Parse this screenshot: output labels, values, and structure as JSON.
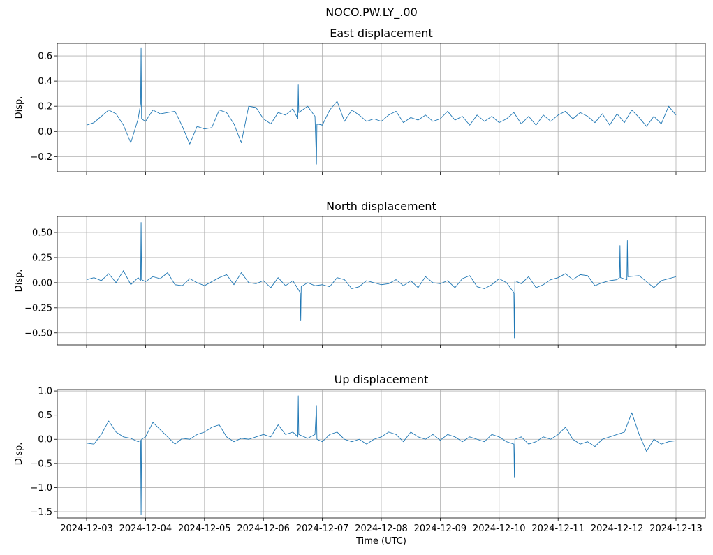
{
  "figure": {
    "suptitle": "NOCO.PW.LY_.00",
    "series_color": "#1f77b4"
  },
  "chart_data": [
    {
      "type": "line",
      "title": "East displacement",
      "xlabel": "",
      "ylabel": "Disp.",
      "xlim": [
        "2024-12-03",
        "2024-12-13"
      ],
      "ylim": [
        -0.32,
        0.7
      ],
      "yticks": [
        -0.2,
        0.0,
        0.2,
        0.4,
        0.6
      ],
      "ytick_labels": [
        "−0.2",
        "0.0",
        "0.2",
        "0.4",
        "0.6"
      ],
      "grid": true,
      "series": [
        {
          "x": [
            "2024-12-03T00:00",
            "2024-12-03T03:00",
            "2024-12-03T06:00",
            "2024-12-03T09:00",
            "2024-12-03T12:00",
            "2024-12-03T15:00",
            "2024-12-03T18:00",
            "2024-12-03T21:00",
            "2024-12-03T22:00",
            "2024-12-03T22:12",
            "2024-12-03T22:24",
            "2024-12-04T00:00",
            "2024-12-04T03:00",
            "2024-12-04T06:00",
            "2024-12-04T09:00",
            "2024-12-04T12:00",
            "2024-12-04T15:00",
            "2024-12-04T18:00",
            "2024-12-04T21:00",
            "2024-12-05T00:00",
            "2024-12-05T03:00",
            "2024-12-05T06:00",
            "2024-12-05T09:00",
            "2024-12-05T12:00",
            "2024-12-05T15:00",
            "2024-12-05T18:00",
            "2024-12-05T21:00",
            "2024-12-06T00:00",
            "2024-12-06T03:00",
            "2024-12-06T06:00",
            "2024-12-06T09:00",
            "2024-12-06T12:00",
            "2024-12-06T14:00",
            "2024-12-06T14:12",
            "2024-12-06T14:24",
            "2024-12-06T18:00",
            "2024-12-06T21:00",
            "2024-12-06T21:36",
            "2024-12-06T21:48",
            "2024-12-07T00:00",
            "2024-12-07T03:00",
            "2024-12-07T06:00",
            "2024-12-07T09:00",
            "2024-12-07T12:00",
            "2024-12-07T15:00",
            "2024-12-07T18:00",
            "2024-12-07T21:00",
            "2024-12-08T00:00",
            "2024-12-08T03:00",
            "2024-12-08T06:00",
            "2024-12-08T09:00",
            "2024-12-08T12:00",
            "2024-12-08T15:00",
            "2024-12-08T18:00",
            "2024-12-08T21:00",
            "2024-12-09T00:00",
            "2024-12-09T03:00",
            "2024-12-09T06:00",
            "2024-12-09T09:00",
            "2024-12-09T12:00",
            "2024-12-09T15:00",
            "2024-12-09T18:00",
            "2024-12-09T21:00",
            "2024-12-10T00:00",
            "2024-12-10T03:00",
            "2024-12-10T06:00",
            "2024-12-10T09:00",
            "2024-12-10T12:00",
            "2024-12-10T15:00",
            "2024-12-10T18:00",
            "2024-12-10T21:00",
            "2024-12-11T00:00",
            "2024-12-11T03:00",
            "2024-12-11T06:00",
            "2024-12-11T09:00",
            "2024-12-11T12:00",
            "2024-12-11T15:00",
            "2024-12-11T18:00",
            "2024-12-11T21:00",
            "2024-12-12T00:00",
            "2024-12-12T03:00",
            "2024-12-12T06:00",
            "2024-12-12T09:00",
            "2024-12-12T12:00",
            "2024-12-12T15:00",
            "2024-12-12T18:00",
            "2024-12-12T21:00",
            "2024-12-13T00:00"
          ],
          "y": [
            0.05,
            0.07,
            0.12,
            0.17,
            0.14,
            0.05,
            -0.09,
            0.1,
            0.22,
            0.66,
            0.1,
            0.08,
            0.17,
            0.14,
            0.15,
            0.16,
            0.04,
            -0.1,
            0.04,
            0.02,
            0.03,
            0.17,
            0.15,
            0.06,
            -0.09,
            0.2,
            0.19,
            0.1,
            0.06,
            0.15,
            0.13,
            0.18,
            0.1,
            0.37,
            0.15,
            0.2,
            0.12,
            -0.26,
            0.06,
            0.05,
            0.17,
            0.24,
            0.08,
            0.17,
            0.13,
            0.08,
            0.1,
            0.08,
            0.13,
            0.16,
            0.07,
            0.11,
            0.09,
            0.13,
            0.08,
            0.1,
            0.16,
            0.09,
            0.12,
            0.05,
            0.13,
            0.08,
            0.12,
            0.07,
            0.1,
            0.15,
            0.06,
            0.12,
            0.05,
            0.13,
            0.08,
            0.13,
            0.16,
            0.1,
            0.15,
            0.12,
            0.07,
            0.14,
            0.05,
            0.14,
            0.07,
            0.17,
            0.11,
            0.04,
            0.12,
            0.06,
            0.2,
            0.13
          ]
        }
      ]
    },
    {
      "type": "line",
      "title": "North displacement",
      "xlabel": "",
      "ylabel": "Disp.",
      "xlim": [
        "2024-12-03",
        "2024-12-13"
      ],
      "ylim": [
        -0.62,
        0.66
      ],
      "yticks": [
        -0.5,
        -0.25,
        0.0,
        0.25,
        0.5
      ],
      "ytick_labels": [
        "−0.50",
        "−0.25",
        "0.00",
        "0.25",
        "0.50"
      ],
      "grid": true,
      "series": [
        {
          "x": [
            "2024-12-03T00:00",
            "2024-12-03T03:00",
            "2024-12-03T06:00",
            "2024-12-03T09:00",
            "2024-12-03T12:00",
            "2024-12-03T15:00",
            "2024-12-03T18:00",
            "2024-12-03T21:00",
            "2024-12-03T22:00",
            "2024-12-03T22:12",
            "2024-12-03T22:24",
            "2024-12-04T00:00",
            "2024-12-04T03:00",
            "2024-12-04T06:00",
            "2024-12-04T09:00",
            "2024-12-04T12:00",
            "2024-12-04T15:00",
            "2024-12-04T18:00",
            "2024-12-04T21:00",
            "2024-12-05T00:00",
            "2024-12-05T03:00",
            "2024-12-05T06:00",
            "2024-12-05T09:00",
            "2024-12-05T12:00",
            "2024-12-05T15:00",
            "2024-12-05T18:00",
            "2024-12-05T21:00",
            "2024-12-06T00:00",
            "2024-12-06T03:00",
            "2024-12-06T06:00",
            "2024-12-06T09:00",
            "2024-12-06T12:00",
            "2024-12-06T15:00",
            "2024-12-06T15:12",
            "2024-12-06T15:24",
            "2024-12-06T18:00",
            "2024-12-06T21:00",
            "2024-12-07T00:00",
            "2024-12-07T03:00",
            "2024-12-07T06:00",
            "2024-12-07T09:00",
            "2024-12-07T12:00",
            "2024-12-07T15:00",
            "2024-12-07T18:00",
            "2024-12-07T21:00",
            "2024-12-08T00:00",
            "2024-12-08T03:00",
            "2024-12-08T06:00",
            "2024-12-08T09:00",
            "2024-12-08T12:00",
            "2024-12-08T15:00",
            "2024-12-08T18:00",
            "2024-12-08T21:00",
            "2024-12-09T00:00",
            "2024-12-09T03:00",
            "2024-12-09T06:00",
            "2024-12-09T09:00",
            "2024-12-09T12:00",
            "2024-12-09T15:00",
            "2024-12-09T18:00",
            "2024-12-09T21:00",
            "2024-12-10T00:00",
            "2024-12-10T03:00",
            "2024-12-10T06:00",
            "2024-12-10T06:12",
            "2024-12-10T06:24",
            "2024-12-10T09:00",
            "2024-12-10T12:00",
            "2024-12-10T15:00",
            "2024-12-10T18:00",
            "2024-12-10T21:00",
            "2024-12-11T00:00",
            "2024-12-11T03:00",
            "2024-12-11T06:00",
            "2024-12-11T09:00",
            "2024-12-11T12:00",
            "2024-12-11T15:00",
            "2024-12-11T18:00",
            "2024-12-11T21:00",
            "2024-12-12T00:00",
            "2024-12-12T01:00",
            "2024-12-12T01:12",
            "2024-12-12T01:24",
            "2024-12-12T04:00",
            "2024-12-12T04:12",
            "2024-12-12T04:24",
            "2024-12-12T09:00",
            "2024-12-12T12:00",
            "2024-12-12T15:00",
            "2024-12-12T18:00",
            "2024-12-12T21:00",
            "2024-12-13T00:00"
          ],
          "y": [
            0.03,
            0.05,
            0.02,
            0.09,
            0.0,
            0.12,
            -0.02,
            0.05,
            0.02,
            0.6,
            0.03,
            0.01,
            0.06,
            0.04,
            0.1,
            -0.02,
            -0.03,
            0.04,
            0.0,
            -0.03,
            0.01,
            0.05,
            0.08,
            -0.02,
            0.1,
            0.0,
            -0.01,
            0.02,
            -0.05,
            0.05,
            -0.03,
            0.02,
            -0.1,
            -0.38,
            -0.04,
            0.0,
            -0.03,
            -0.02,
            -0.04,
            0.05,
            0.03,
            -0.06,
            -0.04,
            0.02,
            0.0,
            -0.02,
            -0.01,
            0.03,
            -0.03,
            0.02,
            -0.05,
            0.06,
            0.0,
            -0.01,
            0.02,
            -0.05,
            0.04,
            0.07,
            -0.04,
            -0.06,
            -0.02,
            0.04,
            0.0,
            -0.1,
            -0.55,
            0.02,
            -0.01,
            0.06,
            -0.05,
            -0.02,
            0.03,
            0.05,
            0.09,
            0.03,
            0.08,
            0.07,
            -0.03,
            0.0,
            0.02,
            0.03,
            0.05,
            0.37,
            0.05,
            0.03,
            0.42,
            0.06,
            0.07,
            0.01,
            -0.05,
            0.02,
            0.04,
            0.06
          ]
        }
      ]
    },
    {
      "type": "line",
      "title": "Up displacement",
      "xlabel": "Time (UTC)",
      "ylabel": "Disp.",
      "xlim": [
        "2024-12-03",
        "2024-12-13"
      ],
      "ylim": [
        -1.63,
        1.03
      ],
      "yticks": [
        -1.5,
        -1.0,
        -0.5,
        0.0,
        0.5,
        1.0
      ],
      "ytick_labels": [
        "−1.5",
        "−1.0",
        "−0.5",
        "0.0",
        "0.5",
        "1.0"
      ],
      "xticks": [
        "2024-12-03",
        "2024-12-04",
        "2024-12-05",
        "2024-12-06",
        "2024-12-07",
        "2024-12-08",
        "2024-12-09",
        "2024-12-10",
        "2024-12-11",
        "2024-12-12",
        "2024-12-13"
      ],
      "grid": true,
      "series": [
        {
          "x": [
            "2024-12-03T00:00",
            "2024-12-03T03:00",
            "2024-12-03T06:00",
            "2024-12-03T09:00",
            "2024-12-03T12:00",
            "2024-12-03T15:00",
            "2024-12-03T18:00",
            "2024-12-03T21:00",
            "2024-12-03T22:00",
            "2024-12-03T22:12",
            "2024-12-03T22:24",
            "2024-12-04T00:00",
            "2024-12-04T03:00",
            "2024-12-04T06:00",
            "2024-12-04T09:00",
            "2024-12-04T12:00",
            "2024-12-04T15:00",
            "2024-12-04T18:00",
            "2024-12-04T21:00",
            "2024-12-05T00:00",
            "2024-12-05T03:00",
            "2024-12-05T06:00",
            "2024-12-05T09:00",
            "2024-12-05T12:00",
            "2024-12-05T15:00",
            "2024-12-05T18:00",
            "2024-12-05T21:00",
            "2024-12-06T00:00",
            "2024-12-06T03:00",
            "2024-12-06T06:00",
            "2024-12-06T09:00",
            "2024-12-06T12:00",
            "2024-12-06T14:00",
            "2024-12-06T14:12",
            "2024-12-06T14:24",
            "2024-12-06T18:00",
            "2024-12-06T21:00",
            "2024-12-06T21:36",
            "2024-12-06T21:48",
            "2024-12-07T00:00",
            "2024-12-07T03:00",
            "2024-12-07T06:00",
            "2024-12-07T09:00",
            "2024-12-07T12:00",
            "2024-12-07T15:00",
            "2024-12-07T18:00",
            "2024-12-07T21:00",
            "2024-12-08T00:00",
            "2024-12-08T03:00",
            "2024-12-08T06:00",
            "2024-12-08T09:00",
            "2024-12-08T12:00",
            "2024-12-08T15:00",
            "2024-12-08T18:00",
            "2024-12-08T21:00",
            "2024-12-09T00:00",
            "2024-12-09T03:00",
            "2024-12-09T06:00",
            "2024-12-09T09:00",
            "2024-12-09T12:00",
            "2024-12-09T15:00",
            "2024-12-09T18:00",
            "2024-12-09T21:00",
            "2024-12-10T00:00",
            "2024-12-10T03:00",
            "2024-12-10T06:00",
            "2024-12-10T06:12",
            "2024-12-10T06:24",
            "2024-12-10T09:00",
            "2024-12-10T12:00",
            "2024-12-10T15:00",
            "2024-12-10T18:00",
            "2024-12-10T21:00",
            "2024-12-11T00:00",
            "2024-12-11T03:00",
            "2024-12-11T06:00",
            "2024-12-11T09:00",
            "2024-12-11T12:00",
            "2024-12-11T15:00",
            "2024-12-11T18:00",
            "2024-12-11T21:00",
            "2024-12-12T00:00",
            "2024-12-12T03:00",
            "2024-12-12T06:00",
            "2024-12-12T09:00",
            "2024-12-12T12:00",
            "2024-12-12T15:00",
            "2024-12-12T18:00",
            "2024-12-12T21:00",
            "2024-12-13T00:00"
          ],
          "y": [
            -0.08,
            -0.1,
            0.1,
            0.38,
            0.15,
            0.05,
            0.02,
            -0.05,
            -0.02,
            -1.56,
            0.0,
            0.05,
            0.35,
            0.2,
            0.05,
            -0.1,
            0.02,
            0.0,
            0.1,
            0.15,
            0.25,
            0.3,
            0.05,
            -0.05,
            0.02,
            0.0,
            0.05,
            0.1,
            0.05,
            0.3,
            0.1,
            0.15,
            0.05,
            0.9,
            0.1,
            0.02,
            0.1,
            0.7,
            0.0,
            -0.05,
            0.1,
            0.15,
            0.0,
            -0.05,
            0.0,
            -0.1,
            0.0,
            0.05,
            0.15,
            0.1,
            -0.05,
            0.15,
            0.05,
            0.0,
            0.1,
            -0.02,
            0.1,
            0.05,
            -0.05,
            0.05,
            0.0,
            -0.05,
            0.1,
            0.05,
            -0.05,
            -0.1,
            -0.78,
            0.0,
            0.05,
            -0.1,
            -0.05,
            0.05,
            0.0,
            0.1,
            0.25,
            0.0,
            -0.1,
            -0.05,
            -0.15,
            0.0,
            0.05,
            0.1,
            0.15,
            0.55,
            0.1,
            -0.25,
            0.0,
            -0.1,
            -0.05,
            -0.03
          ]
        }
      ]
    }
  ]
}
